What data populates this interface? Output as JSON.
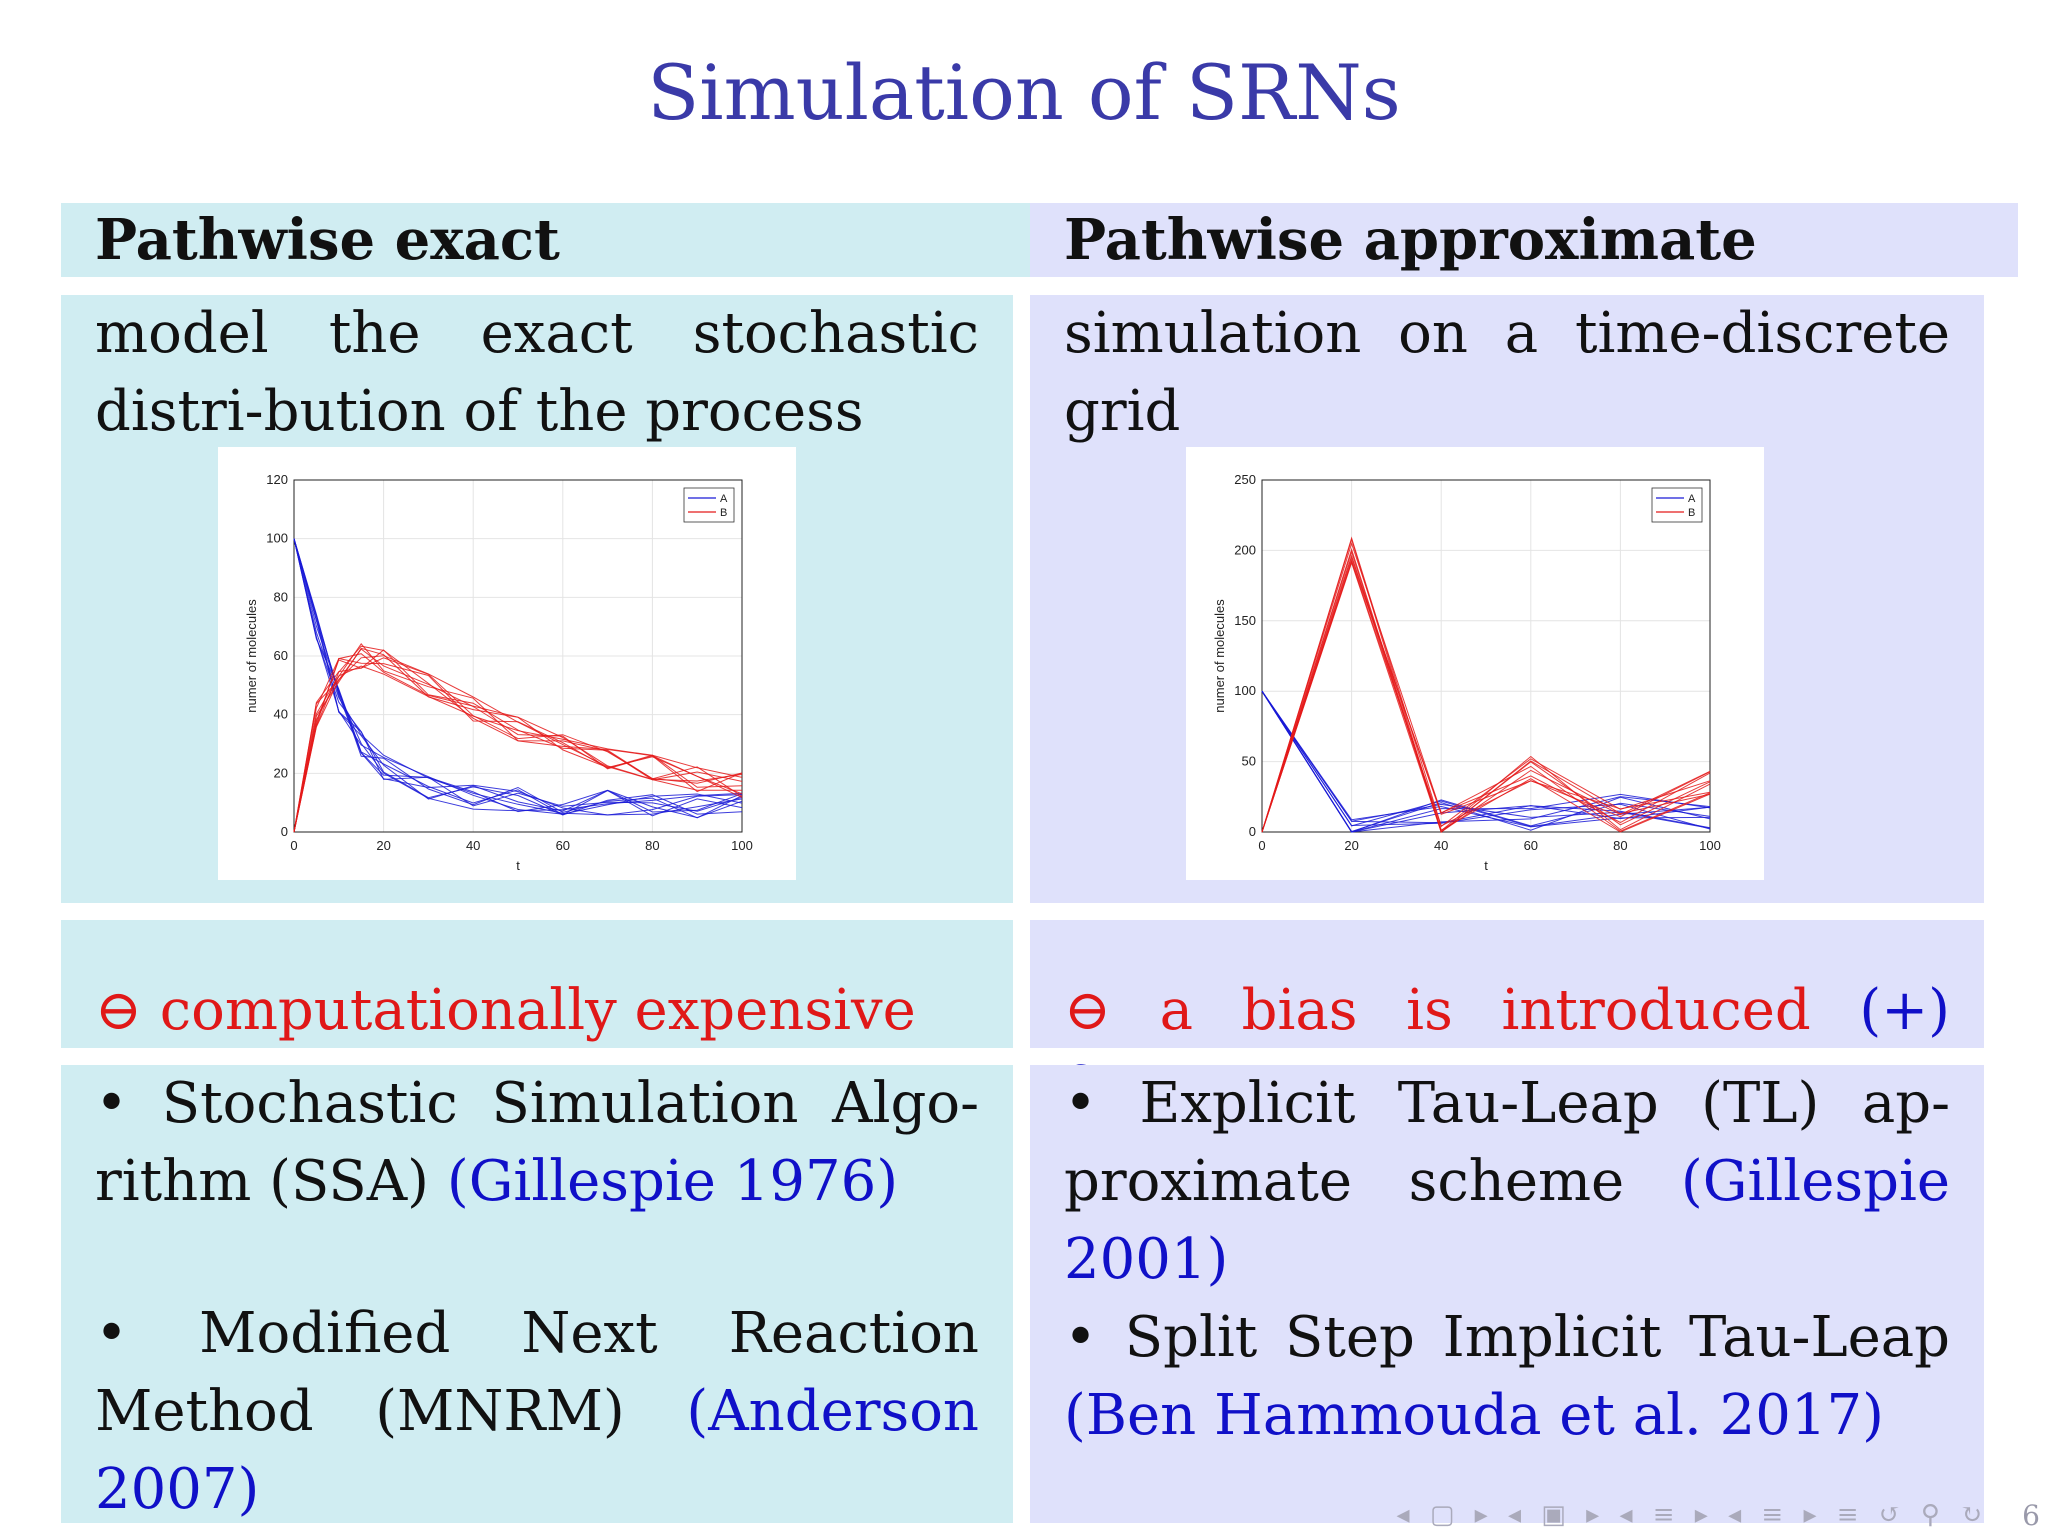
{
  "title": "Simulation of SRNs",
  "left": {
    "header": "Pathwise exact",
    "description": "model the exact stochastic distri-bution of the process",
    "con_symbol": "⊖",
    "con_text": "computationally expensive",
    "methods": [
      {
        "text": "• Stochastic Simulation Algo-rithm (SSA)",
        "ref": "(Gillespie 1976)"
      },
      {
        "text": "• Modified Next Reaction Method (MNRM)",
        "ref": "(Anderson 2007)"
      }
    ]
  },
  "right": {
    "header": "Pathwise approximate",
    "description": "simulation on a time-discrete grid",
    "con_symbol": "⊖",
    "con_text": "a bias is introduced",
    "pro_text": "(+) faster",
    "methods": [
      {
        "text": "• Explicit Tau-Leap (TL) ap-proximate scheme",
        "ref": "(Gillespie 2001)"
      },
      {
        "text": "• Split Step Implicit Tau-Leap",
        "ref": "(Ben Hammouda et al. 2017)"
      }
    ]
  },
  "page_number": "6",
  "colors": {
    "series_A": "#1a1ad6",
    "series_B": "#e41a1a",
    "title": "#3a3aa8"
  },
  "chart_data": [
    {
      "type": "line",
      "xlabel": "t",
      "ylabel": "numer of molecules",
      "xlim": [
        0,
        100
      ],
      "ylim": [
        0,
        120
      ],
      "xticks": [
        0,
        20,
        40,
        60,
        80,
        100
      ],
      "yticks": [
        0,
        20,
        40,
        60,
        80,
        100,
        120
      ],
      "legend": [
        "A",
        "B"
      ],
      "legend_position": "top-right",
      "grid": true,
      "series": [
        {
          "name": "A",
          "x": [
            0,
            5,
            10,
            15,
            20,
            30,
            40,
            50,
            60,
            70,
            80,
            90,
            100
          ],
          "values": [
            100,
            70,
            45,
            30,
            22,
            15,
            12,
            11,
            10,
            10,
            9,
            9,
            9
          ]
        },
        {
          "name": "B",
          "x": [
            0,
            5,
            10,
            15,
            20,
            30,
            40,
            50,
            60,
            70,
            80,
            90,
            100
          ],
          "values": [
            0,
            40,
            55,
            60,
            58,
            50,
            42,
            35,
            30,
            25,
            22,
            18,
            16
          ]
        }
      ]
    },
    {
      "type": "line",
      "xlabel": "t",
      "ylabel": "numer of molecules",
      "xlim": [
        0,
        100
      ],
      "ylim": [
        0,
        250
      ],
      "xticks": [
        0,
        20,
        40,
        60,
        80,
        100
      ],
      "yticks": [
        0,
        50,
        100,
        150,
        200,
        250
      ],
      "legend": [
        "A",
        "B"
      ],
      "legend_position": "top-right",
      "grid": true,
      "series": [
        {
          "name": "A",
          "x": [
            0,
            20,
            40,
            60,
            80,
            100
          ],
          "values": [
            100,
            0,
            15,
            10,
            18,
            10
          ]
        },
        {
          "name": "B",
          "x": [
            0,
            20,
            40,
            60,
            80,
            100
          ],
          "values": [
            0,
            200,
            5,
            45,
            8,
            35
          ]
        }
      ]
    }
  ]
}
